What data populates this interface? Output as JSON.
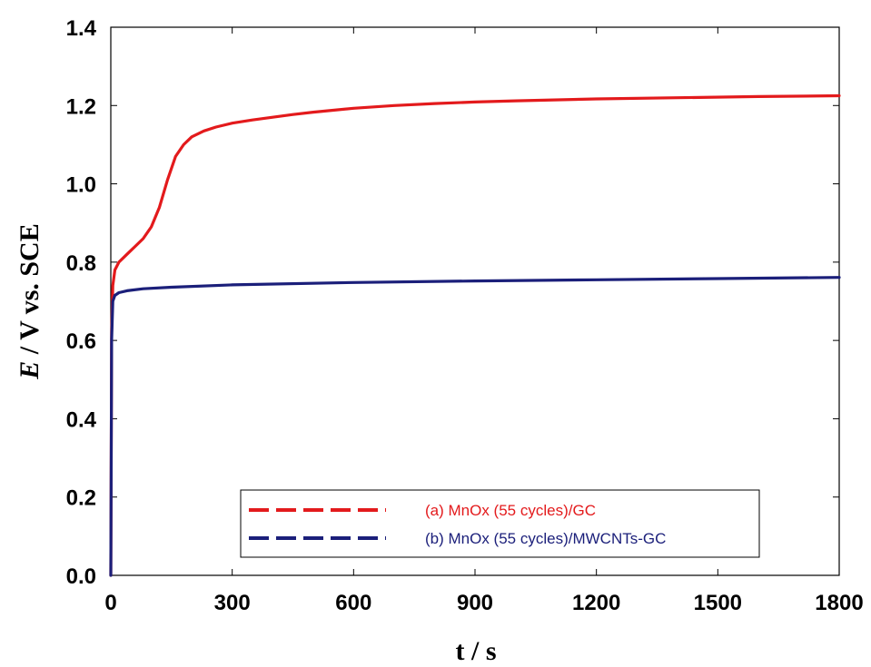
{
  "chart_data": {
    "type": "line",
    "xlabel": "t / s",
    "ylabel_parts": {
      "italic": "E",
      "rest": " / V vs. SCE"
    },
    "xlim": [
      0,
      1800
    ],
    "ylim": [
      0,
      1.4
    ],
    "xticks": [
      0,
      300,
      600,
      900,
      1200,
      1500,
      1800
    ],
    "yticks": [
      "0.0",
      "0.2",
      "0.4",
      "0.6",
      "0.8",
      "1.0",
      "1.2",
      "1.4"
    ],
    "grid": false,
    "legend_position": "bottom-right",
    "series": [
      {
        "name": "(a) MnOx (55 cycles)/GC",
        "color": "#e31a1c",
        "x": [
          0,
          2,
          5,
          10,
          20,
          40,
          60,
          80,
          100,
          120,
          140,
          160,
          180,
          200,
          230,
          260,
          300,
          350,
          400,
          450,
          500,
          600,
          700,
          800,
          900,
          1000,
          1200,
          1400,
          1600,
          1800
        ],
        "y": [
          0,
          0.62,
          0.74,
          0.78,
          0.8,
          0.82,
          0.84,
          0.86,
          0.89,
          0.94,
          1.01,
          1.07,
          1.1,
          1.12,
          1.135,
          1.145,
          1.155,
          1.163,
          1.17,
          1.177,
          1.183,
          1.193,
          1.2,
          1.205,
          1.209,
          1.212,
          1.217,
          1.22,
          1.223,
          1.225
        ]
      },
      {
        "name": "(b) MnOx (55 cycles)/MWCNTs-GC",
        "color": "#1b1f7a",
        "x": [
          0,
          2,
          5,
          10,
          20,
          40,
          80,
          150,
          300,
          600,
          900,
          1200,
          1500,
          1800
        ],
        "y": [
          0,
          0.6,
          0.7,
          0.715,
          0.722,
          0.727,
          0.732,
          0.736,
          0.742,
          0.748,
          0.752,
          0.755,
          0.758,
          0.761
        ]
      }
    ]
  }
}
